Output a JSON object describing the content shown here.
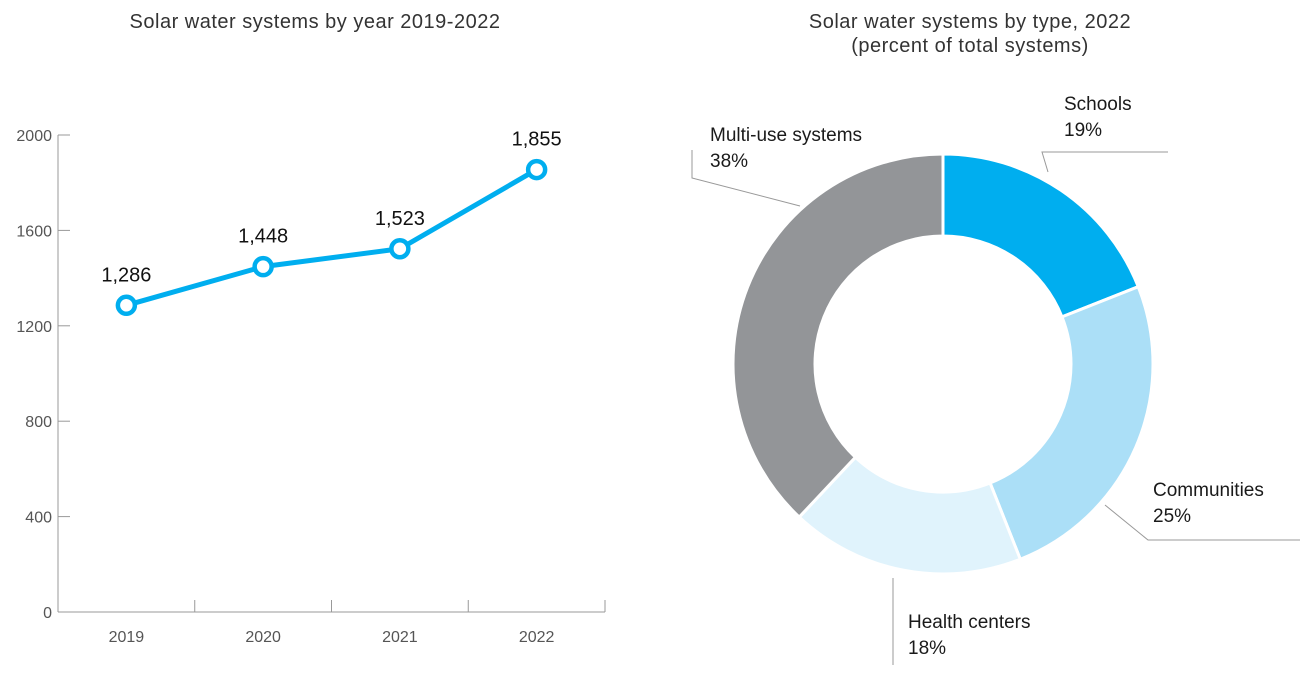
{
  "chart_data": [
    {
      "type": "line",
      "title": "Solar water systems by year 2019-2022",
      "xlabel": "",
      "ylabel": "",
      "categories": [
        "2019",
        "2020",
        "2021",
        "2022"
      ],
      "values": [
        1286,
        1448,
        1523,
        1855
      ],
      "data_labels": [
        "1,286",
        "1,448",
        "1,523",
        "1,855"
      ],
      "yticks": [
        0,
        400,
        800,
        1200,
        1600,
        2000
      ],
      "ylim": [
        0,
        2000
      ],
      "grid": false,
      "color": "#00aeef"
    },
    {
      "type": "pie",
      "title": "Solar water systems by type, 2022",
      "subtitle": "(percent of total systems)",
      "slices": [
        {
          "name": "Schools",
          "value": 19,
          "label": "19%",
          "color": "#00aeef"
        },
        {
          "name": "Communities",
          "value": 25,
          "label": "25%",
          "color": "#abdff7"
        },
        {
          "name": "Health centers",
          "value": 18,
          "label": "18%",
          "color": "#e0f3fc"
        },
        {
          "name": "Multi-use systems",
          "value": 38,
          "label": "38%",
          "color": "#939598"
        }
      ]
    }
  ]
}
